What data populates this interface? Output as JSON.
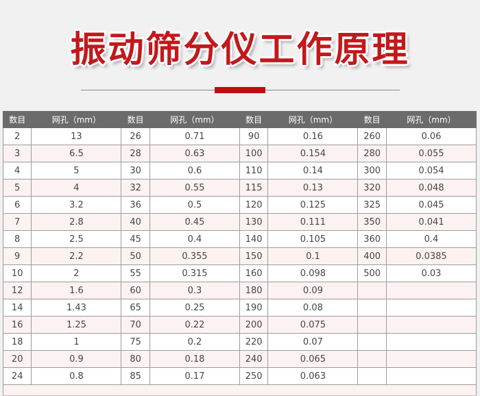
{
  "header": {
    "title": "振动筛分仪工作原理",
    "title_color": "#c2191c",
    "divider_accent_color": "#bf0e0e"
  },
  "table": {
    "header_bg": "#6b6b6b",
    "row_alt_bg": "#fcf2f1",
    "column_headers": [
      "数目",
      "网孔（mm）",
      "数目",
      "网孔（mm）",
      "数目",
      "网孔（mm）",
      "数目",
      "网孔（mm）"
    ],
    "rows": [
      [
        "2",
        "13",
        "26",
        "0.71",
        "90",
        "0.16",
        "260",
        "0.06"
      ],
      [
        "3",
        "6.5",
        "28",
        "0.63",
        "100",
        "0.154",
        "280",
        "0.055"
      ],
      [
        "4",
        "5",
        "30",
        "0.6",
        "110",
        "0.14",
        "300",
        "0.054"
      ],
      [
        "5",
        "4",
        "32",
        "0.55",
        "115",
        "0.13",
        "320",
        "0.048"
      ],
      [
        "6",
        "3.2",
        "36",
        "0.5",
        "120",
        "0.125",
        "325",
        "0.045"
      ],
      [
        "7",
        "2.8",
        "40",
        "0.45",
        "130",
        "0.111",
        "350",
        "0.041"
      ],
      [
        "8",
        "2.5",
        "45",
        "0.4",
        "140",
        "0.105",
        "360",
        "0.4"
      ],
      [
        "9",
        "2.2",
        "50",
        "0.355",
        "150",
        "0.1",
        "400",
        "0.0385"
      ],
      [
        "10",
        "2",
        "55",
        "0.315",
        "160",
        "0.098",
        "500",
        "0.03"
      ],
      [
        "12",
        "1.6",
        "60",
        "0.3",
        "180",
        "0.09",
        "",
        ""
      ],
      [
        "14",
        "1.43",
        "65",
        "0.25",
        "190",
        "0.08",
        "",
        ""
      ],
      [
        "16",
        "1.25",
        "70",
        "0.22",
        "200",
        "0.075",
        "",
        ""
      ],
      [
        "18",
        "1",
        "75",
        "0.2",
        "220",
        "0.07",
        "",
        ""
      ],
      [
        "20",
        "0.9",
        "80",
        "0.18",
        "240",
        "0.065",
        "",
        ""
      ],
      [
        "24",
        "0.8",
        "85",
        "0.17",
        "250",
        "0.063",
        "",
        ""
      ]
    ]
  }
}
